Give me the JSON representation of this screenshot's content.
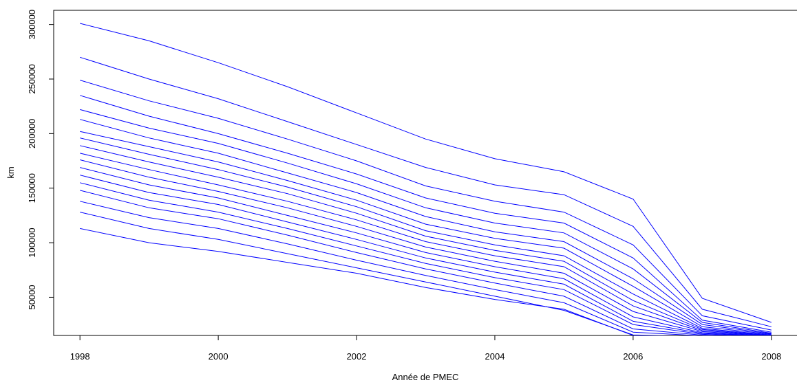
{
  "chart_data": {
    "type": "line",
    "title": "",
    "xlabel": "Année de PMEC",
    "ylabel": "km",
    "xlim": [
      1997.62,
      2008.38
    ],
    "ylim": [
      15000,
      313000
    ],
    "x_ticks": [
      1998,
      2000,
      2002,
      2004,
      2006,
      2008
    ],
    "y_ticks": [
      50000,
      100000,
      150000,
      200000,
      250000,
      300000
    ],
    "x_tick_labels": [
      "1998",
      "2000",
      "2002",
      "2004",
      "2006",
      "2008"
    ],
    "y_tick_labels": [
      "50000",
      "100000",
      "150000",
      "200000",
      "250000",
      "300000"
    ],
    "line_color": "#0000ff",
    "grid": false,
    "legend": "none",
    "x": [
      1998,
      1999,
      2000,
      2001,
      2002,
      2003,
      2004,
      2005,
      2006,
      2007,
      2008
    ],
    "series": [
      {
        "values": [
          301000,
          285000,
          265000,
          243000,
          219000,
          195000,
          177000,
          165000,
          140000,
          49000,
          27000
        ]
      },
      {
        "values": [
          270000,
          250000,
          232000,
          211000,
          190000,
          169000,
          153000,
          144000,
          115000,
          39000,
          23000
        ]
      },
      {
        "values": [
          249000,
          230000,
          214000,
          195000,
          175000,
          152000,
          138000,
          128000,
          98000,
          33000,
          20000
        ]
      },
      {
        "values": [
          235000,
          216000,
          200000,
          182000,
          163000,
          141000,
          127000,
          118000,
          86000,
          29000,
          18000
        ]
      },
      {
        "values": [
          222000,
          205000,
          191000,
          173000,
          154000,
          132000,
          118000,
          109000,
          76000,
          27000,
          17000
        ]
      },
      {
        "values": [
          213000,
          196000,
          182000,
          164000,
          146000,
          124000,
          110000,
          101000,
          67000,
          25000,
          16500
        ]
      },
      {
        "values": [
          202000,
          188000,
          174000,
          157000,
          139000,
          117000,
          104000,
          95000,
          60000,
          23000,
          16000
        ]
      },
      {
        "values": [
          196000,
          181000,
          167000,
          151000,
          133000,
          111000,
          98000,
          88000,
          53000,
          21500,
          15500
        ]
      },
      {
        "values": [
          189000,
          174000,
          160000,
          145000,
          127000,
          106000,
          93000,
          83000,
          47000,
          20500,
          15000
        ]
      },
      {
        "values": [
          182000,
          167000,
          153000,
          138000,
          121000,
          101000,
          88000,
          78000,
          42000,
          19500,
          14800
        ]
      },
      {
        "values": [
          176000,
          160000,
          147000,
          132000,
          115000,
          96000,
          83000,
          72000,
          37000,
          18500,
          14500
        ]
      },
      {
        "values": [
          169000,
          153000,
          141000,
          125000,
          109000,
          91000,
          78000,
          67000,
          32000,
          17500,
          14300
        ]
      },
      {
        "values": [
          162000,
          146000,
          135000,
          119000,
          103000,
          86000,
          73000,
          62000,
          28000,
          16800,
          14100
        ]
      },
      {
        "values": [
          155000,
          139000,
          128000,
          113000,
          97000,
          81000,
          68000,
          57000,
          25000,
          16000,
          13900
        ]
      },
      {
        "values": [
          148000,
          132000,
          122000,
          107000,
          91000,
          76000,
          63000,
          51000,
          21000,
          15300,
          13700
        ]
      },
      {
        "values": [
          138000,
          123000,
          113000,
          99000,
          84000,
          70000,
          57000,
          45000,
          18000,
          14700,
          13500
        ]
      },
      {
        "values": [
          128000,
          113000,
          103000,
          90000,
          77000,
          64000,
          51000,
          38000,
          15500,
          14200,
          13300
        ]
      },
      {
        "values": [
          113000,
          100000,
          92000,
          82000,
          72000,
          59000,
          48000,
          39000,
          15000,
          13800,
          13100
        ]
      }
    ]
  }
}
